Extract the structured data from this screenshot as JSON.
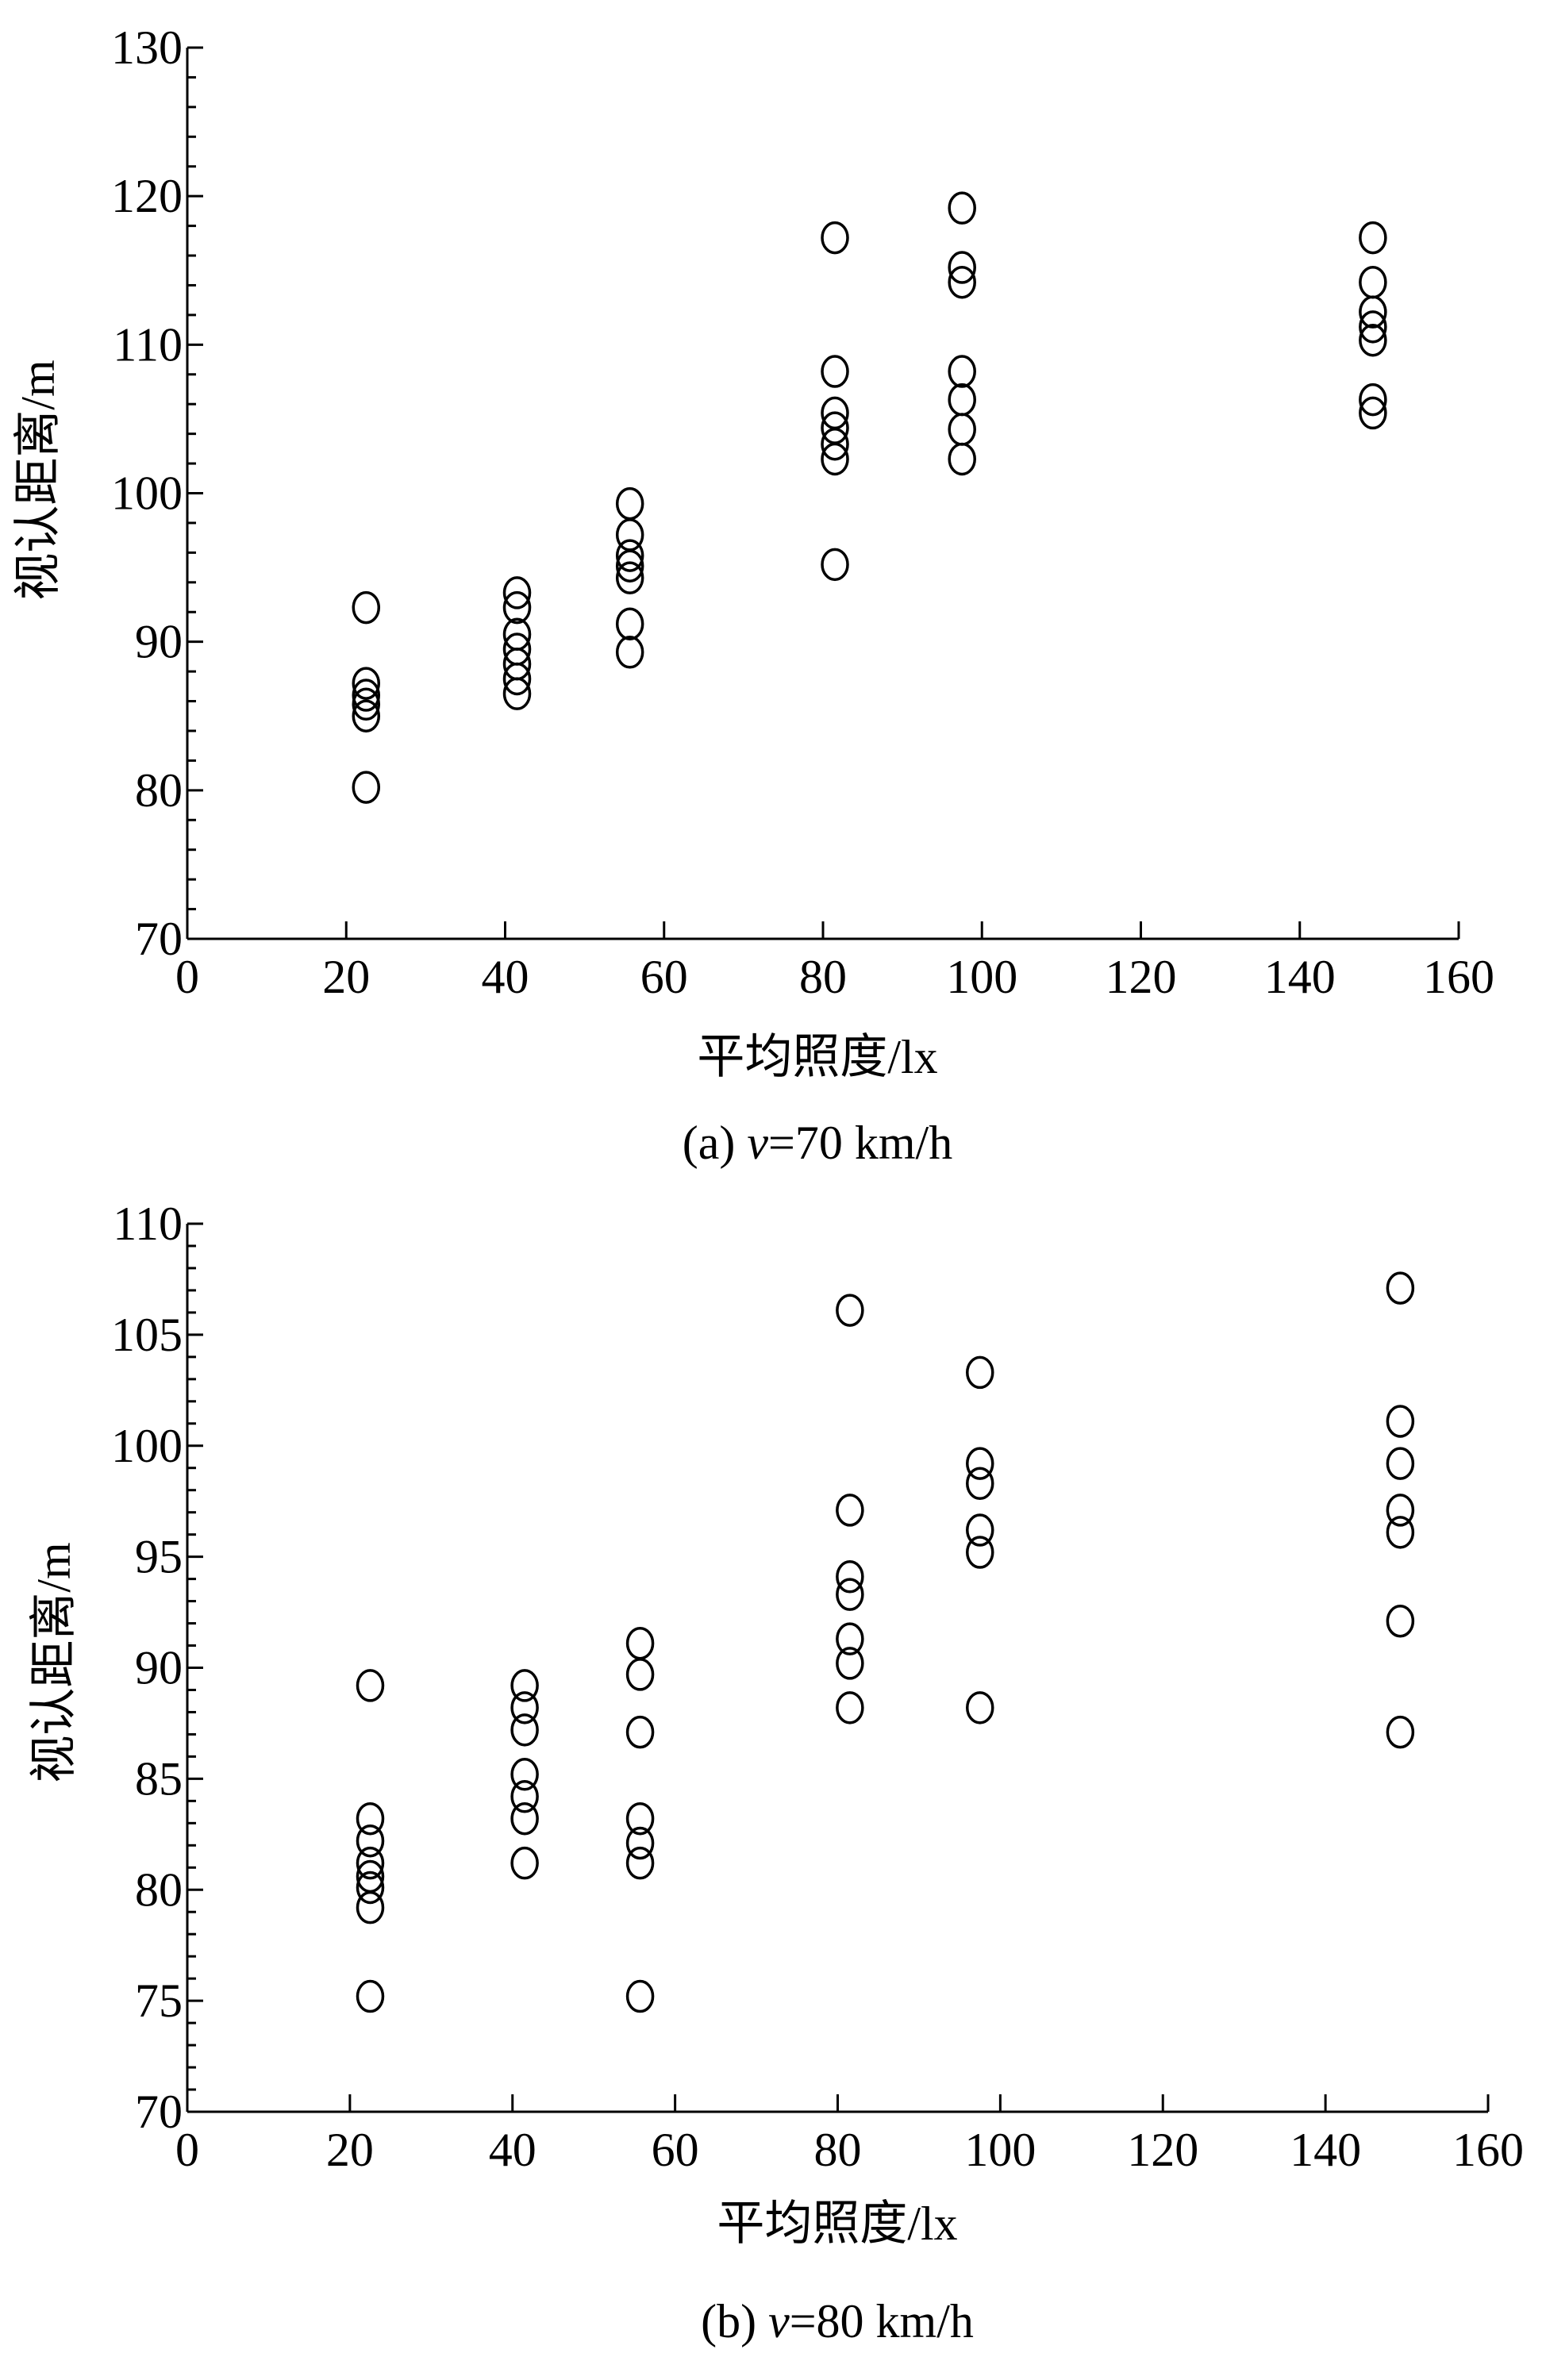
{
  "chart_data": [
    {
      "type": "scatter",
      "caption_prefix": "(a) ",
      "caption_var": "v",
      "caption_suffix": "=70 km/h",
      "xlabel": "平均照度/lx",
      "ylabel": "视认距离/m",
      "xlim": [
        0,
        160
      ],
      "ylim": [
        70,
        130
      ],
      "x_ticks": [
        0,
        20,
        40,
        60,
        80,
        100,
        120,
        140,
        160
      ],
      "y_ticks": [
        70,
        80,
        90,
        100,
        110,
        120,
        130
      ],
      "y_minor": 2,
      "grid": false,
      "legend": "none",
      "marker": "open-circle",
      "points": [
        {
          "x": 22.5,
          "y": 92.3
        },
        {
          "x": 22.5,
          "y": 87.2
        },
        {
          "x": 22.5,
          "y": 86.4
        },
        {
          "x": 22.5,
          "y": 85.8
        },
        {
          "x": 22.5,
          "y": 85.0
        },
        {
          "x": 22.5,
          "y": 80.2
        },
        {
          "x": 41.5,
          "y": 93.3
        },
        {
          "x": 41.5,
          "y": 92.3
        },
        {
          "x": 41.5,
          "y": 90.5
        },
        {
          "x": 41.5,
          "y": 89.5
        },
        {
          "x": 41.5,
          "y": 88.5
        },
        {
          "x": 41.5,
          "y": 87.5
        },
        {
          "x": 41.5,
          "y": 86.5
        },
        {
          "x": 55.7,
          "y": 99.3
        },
        {
          "x": 55.7,
          "y": 97.2
        },
        {
          "x": 55.7,
          "y": 95.8
        },
        {
          "x": 55.7,
          "y": 95.1
        },
        {
          "x": 55.7,
          "y": 94.3
        },
        {
          "x": 55.7,
          "y": 91.2
        },
        {
          "x": 55.7,
          "y": 89.3
        },
        {
          "x": 81.5,
          "y": 117.2
        },
        {
          "x": 81.5,
          "y": 108.2
        },
        {
          "x": 81.5,
          "y": 105.4
        },
        {
          "x": 81.5,
          "y": 104.4
        },
        {
          "x": 81.5,
          "y": 103.3
        },
        {
          "x": 81.5,
          "y": 102.3
        },
        {
          "x": 81.5,
          "y": 95.2
        },
        {
          "x": 97.5,
          "y": 119.2
        },
        {
          "x": 97.5,
          "y": 115.2
        },
        {
          "x": 97.5,
          "y": 114.2
        },
        {
          "x": 97.5,
          "y": 108.2
        },
        {
          "x": 97.5,
          "y": 106.3
        },
        {
          "x": 97.5,
          "y": 104.3
        },
        {
          "x": 97.5,
          "y": 102.3
        },
        {
          "x": 149.2,
          "y": 117.2
        },
        {
          "x": 149.2,
          "y": 114.2
        },
        {
          "x": 149.2,
          "y": 112.2
        },
        {
          "x": 149.2,
          "y": 111.2
        },
        {
          "x": 149.2,
          "y": 110.3
        },
        {
          "x": 149.2,
          "y": 106.3
        },
        {
          "x": 149.2,
          "y": 105.4
        }
      ]
    },
    {
      "type": "scatter",
      "caption_prefix": "(b) ",
      "caption_var": "v",
      "caption_suffix": "=80 km/h",
      "xlabel": "平均照度/lx",
      "ylabel": "视认距离/m",
      "xlim": [
        0,
        160
      ],
      "ylim": [
        70,
        110
      ],
      "x_ticks": [
        0,
        20,
        40,
        60,
        80,
        100,
        120,
        140,
        160
      ],
      "y_ticks": [
        70,
        75,
        80,
        85,
        90,
        95,
        100,
        105,
        110
      ],
      "y_minor": 1,
      "grid": false,
      "legend": "none",
      "marker": "open-circle",
      "points": [
        {
          "x": 22.5,
          "y": 89.2
        },
        {
          "x": 22.5,
          "y": 83.2
        },
        {
          "x": 22.5,
          "y": 82.2
        },
        {
          "x": 22.5,
          "y": 81.2
        },
        {
          "x": 22.5,
          "y": 80.6
        },
        {
          "x": 22.5,
          "y": 80.1
        },
        {
          "x": 22.5,
          "y": 79.2
        },
        {
          "x": 22.5,
          "y": 75.2
        },
        {
          "x": 41.5,
          "y": 89.2
        },
        {
          "x": 41.5,
          "y": 88.2
        },
        {
          "x": 41.5,
          "y": 87.2
        },
        {
          "x": 41.5,
          "y": 85.2
        },
        {
          "x": 41.5,
          "y": 84.2
        },
        {
          "x": 41.5,
          "y": 83.2
        },
        {
          "x": 41.5,
          "y": 81.2
        },
        {
          "x": 55.7,
          "y": 91.1
        },
        {
          "x": 55.7,
          "y": 89.7
        },
        {
          "x": 55.7,
          "y": 87.1
        },
        {
          "x": 55.7,
          "y": 83.2
        },
        {
          "x": 55.7,
          "y": 82.1
        },
        {
          "x": 55.7,
          "y": 81.2
        },
        {
          "x": 55.7,
          "y": 75.2
        },
        {
          "x": 81.5,
          "y": 106.1
        },
        {
          "x": 81.5,
          "y": 97.1
        },
        {
          "x": 81.5,
          "y": 94.1
        },
        {
          "x": 81.5,
          "y": 93.3
        },
        {
          "x": 81.5,
          "y": 91.3
        },
        {
          "x": 81.5,
          "y": 90.2
        },
        {
          "x": 81.5,
          "y": 88.2
        },
        {
          "x": 97.5,
          "y": 103.3
        },
        {
          "x": 97.5,
          "y": 99.2
        },
        {
          "x": 97.5,
          "y": 98.3
        },
        {
          "x": 97.5,
          "y": 96.2
        },
        {
          "x": 97.5,
          "y": 95.2
        },
        {
          "x": 97.5,
          "y": 88.2
        },
        {
          "x": 149.2,
          "y": 107.1
        },
        {
          "x": 149.2,
          "y": 101.1
        },
        {
          "x": 149.2,
          "y": 99.2
        },
        {
          "x": 149.2,
          "y": 97.1
        },
        {
          "x": 149.2,
          "y": 96.1
        },
        {
          "x": 149.2,
          "y": 92.1
        },
        {
          "x": 149.2,
          "y": 87.1
        }
      ]
    }
  ]
}
